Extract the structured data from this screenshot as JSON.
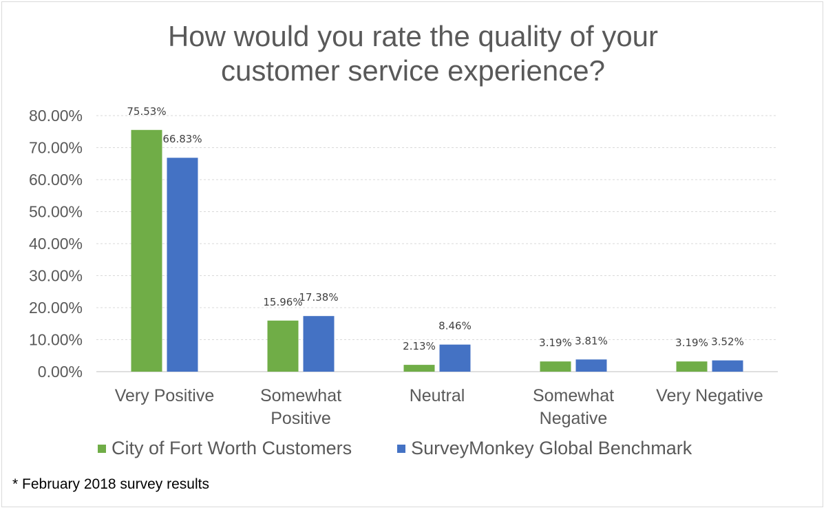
{
  "chart_data": {
    "type": "bar",
    "title_lines": [
      "How would you rate the quality of your",
      "customer service experience?"
    ],
    "categories": [
      [
        "Very Positive"
      ],
      [
        "Somewhat",
        "Positive"
      ],
      [
        "Neutral"
      ],
      [
        "Somewhat",
        "Negative"
      ],
      [
        "Very Negative"
      ]
    ],
    "series": [
      {
        "name": "City of Fort Worth Customers",
        "color": "#70ad47",
        "values": [
          75.53,
          15.96,
          2.13,
          3.19,
          3.19
        ],
        "labels": [
          "75.53%",
          "15.96%",
          "2.13%",
          "3.19%",
          "3.19%"
        ]
      },
      {
        "name": "SurveyMonkey Global Benchmark",
        "color": "#4472c4",
        "values": [
          66.83,
          17.38,
          8.46,
          3.81,
          3.52
        ],
        "labels": [
          "66.83%",
          "17.38%",
          "8.46%",
          "3.81%",
          "3.52%"
        ]
      }
    ],
    "yticks": [
      "0.00%",
      "10.00%",
      "20.00%",
      "30.00%",
      "40.00%",
      "50.00%",
      "60.00%",
      "70.00%",
      "80.00%"
    ],
    "ylim": [
      0,
      80
    ],
    "grid": true,
    "legend_position": "bottom",
    "footnote": "* February 2018 survey results"
  }
}
